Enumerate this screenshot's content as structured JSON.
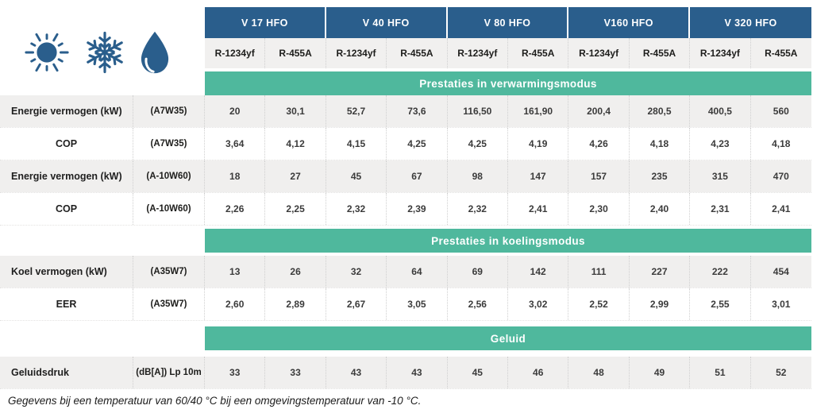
{
  "colors": {
    "header_blue": "#2a5e8c",
    "band_green": "#4fb89d",
    "row_gray": "#f0efee",
    "icon_blue": "#2a5e8c"
  },
  "icons": [
    {
      "name": "sun-icon"
    },
    {
      "name": "snowflake-icon"
    },
    {
      "name": "droplet-icon"
    }
  ],
  "table": {
    "groups": [
      {
        "label": "V 17 HFO"
      },
      {
        "label": "V 40 HFO"
      },
      {
        "label": "V 80 HFO"
      },
      {
        "label": "V160 HFO"
      },
      {
        "label": "V 320 HFO"
      }
    ],
    "refrigerant_columns": [
      "R-1234yf",
      "R-455A",
      "R-1234yf",
      "R-455A",
      "R-1234yf",
      "R-455A",
      "R-1234yf",
      "R-455A",
      "R-1234yf",
      "R-455A"
    ],
    "sections": [
      {
        "band": "Prestaties in verwarmingsmodus",
        "rows": [
          {
            "label": "Energie vermogen (kW)",
            "label_align": "left",
            "condition": "(A7W35)",
            "values": [
              "20",
              "30,1",
              "52,7",
              "73,6",
              "116,50",
              "161,90",
              "200,4",
              "280,5",
              "400,5",
              "560"
            ]
          },
          {
            "label": "COP",
            "label_align": "center",
            "condition": "(A7W35)",
            "values": [
              "3,64",
              "4,12",
              "4,15",
              "4,25",
              "4,25",
              "4,19",
              "4,26",
              "4,18",
              "4,23",
              "4,18"
            ]
          },
          {
            "label": "Energie vermogen (kW)",
            "label_align": "left",
            "condition": "(A-10W60)",
            "values": [
              "18",
              "27",
              "45",
              "67",
              "98",
              "147",
              "157",
              "235",
              "315",
              "470"
            ]
          },
          {
            "label": "COP",
            "label_align": "center",
            "condition": "(A-10W60)",
            "values": [
              "2,26",
              "2,25",
              "2,32",
              "2,39",
              "2,32",
              "2,41",
              "2,30",
              "2,40",
              "2,31",
              "2,41"
            ]
          }
        ]
      },
      {
        "band": "Prestaties in koelingsmodus",
        "rows": [
          {
            "label": "Koel vermogen (kW)",
            "label_align": "left",
            "condition": "(A35W7)",
            "values": [
              "13",
              "26",
              "32",
              "64",
              "69",
              "142",
              "111",
              "227",
              "222",
              "454"
            ]
          },
          {
            "label": "EER",
            "label_align": "center",
            "condition": "(A35W7)",
            "values": [
              "2,60",
              "2,89",
              "2,67",
              "3,05",
              "2,56",
              "3,02",
              "2,52",
              "2,99",
              "2,55",
              "3,01"
            ]
          }
        ]
      },
      {
        "band": "Geluid",
        "rows": [
          {
            "label": "Geluidsdruk",
            "label_align": "left",
            "condition": "(dB[A]) Lp 10m",
            "values": [
              "33",
              "33",
              "43",
              "43",
              "45",
              "46",
              "48",
              "49",
              "51",
              "52"
            ]
          }
        ]
      }
    ]
  },
  "footer": {
    "note": "Gegevens bij een temperatuur van 60/40 °C bij een omgevingstemperatuur van -10 °C."
  }
}
